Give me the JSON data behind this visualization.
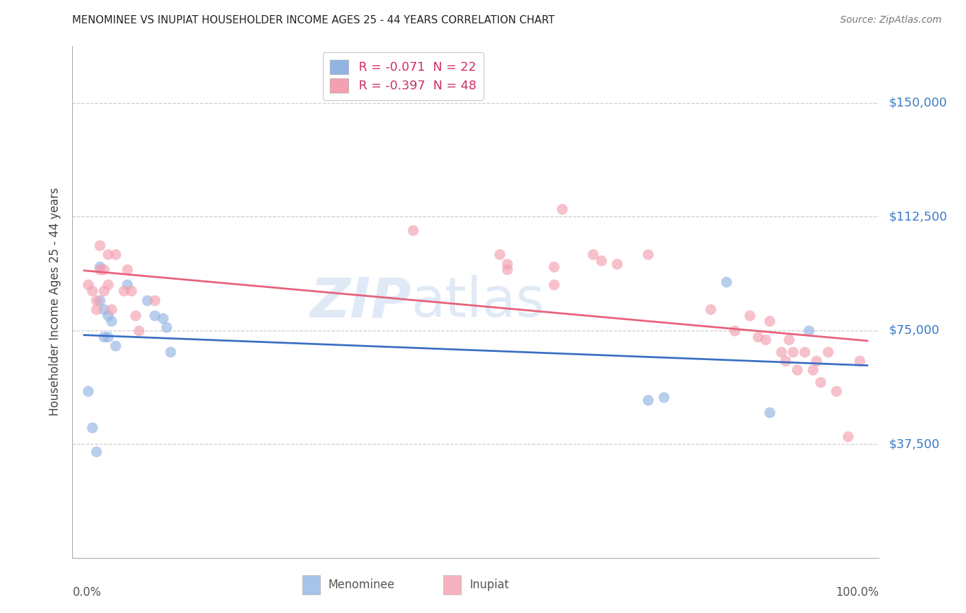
{
  "title": "MENOMINEE VS INUPIAT HOUSEHOLDER INCOME AGES 25 - 44 YEARS CORRELATION CHART",
  "source": "Source: ZipAtlas.com",
  "ylabel": "Householder Income Ages 25 - 44 years",
  "ytick_labels": [
    "$37,500",
    "$75,000",
    "$112,500",
    "$150,000"
  ],
  "ytick_values": [
    37500,
    75000,
    112500,
    150000
  ],
  "ymin": 0,
  "ymax": 168750,
  "xmin": -0.015,
  "xmax": 1.015,
  "r_menominee": -0.071,
  "n_menominee": 22,
  "r_inupiat": -0.397,
  "n_inupiat": 48,
  "menominee_color": "#92b4e3",
  "inupiat_color": "#f4a0b0",
  "menominee_line_color": "#3a6fc4",
  "inupiat_line_color": "#e8607a",
  "watermark_zip": "ZIP",
  "watermark_atlas": "atlas",
  "legend_label1": "R = -0.071  N = 22",
  "legend_label2": "R = -0.397  N = 48",
  "menominee_x": [
    0.005,
    0.01,
    0.015,
    0.02,
    0.02,
    0.025,
    0.025,
    0.03,
    0.03,
    0.035,
    0.04,
    0.055,
    0.08,
    0.09,
    0.1,
    0.105,
    0.11,
    0.72,
    0.74,
    0.82,
    0.875,
    0.925
  ],
  "menominee_y": [
    55000,
    43000,
    35000,
    96000,
    85000,
    82000,
    73000,
    80000,
    73000,
    78000,
    70000,
    90000,
    85000,
    80000,
    79000,
    76000,
    68000,
    52000,
    53000,
    91000,
    48000,
    75000
  ],
  "inupiat_x": [
    0.005,
    0.01,
    0.015,
    0.015,
    0.02,
    0.02,
    0.025,
    0.025,
    0.03,
    0.03,
    0.035,
    0.04,
    0.05,
    0.055,
    0.06,
    0.065,
    0.07,
    0.09,
    0.42,
    0.53,
    0.54,
    0.54,
    0.6,
    0.6,
    0.61,
    0.65,
    0.66,
    0.68,
    0.72,
    0.8,
    0.83,
    0.85,
    0.86,
    0.87,
    0.875,
    0.89,
    0.895,
    0.9,
    0.905,
    0.91,
    0.92,
    0.93,
    0.935,
    0.94,
    0.95,
    0.96,
    0.975,
    0.99
  ],
  "inupiat_y": [
    90000,
    88000,
    85000,
    82000,
    103000,
    95000,
    95000,
    88000,
    100000,
    90000,
    82000,
    100000,
    88000,
    95000,
    88000,
    80000,
    75000,
    85000,
    108000,
    100000,
    97000,
    95000,
    96000,
    90000,
    115000,
    100000,
    98000,
    97000,
    100000,
    82000,
    75000,
    80000,
    73000,
    72000,
    78000,
    68000,
    65000,
    72000,
    68000,
    62000,
    68000,
    62000,
    65000,
    58000,
    68000,
    55000,
    40000,
    65000
  ]
}
